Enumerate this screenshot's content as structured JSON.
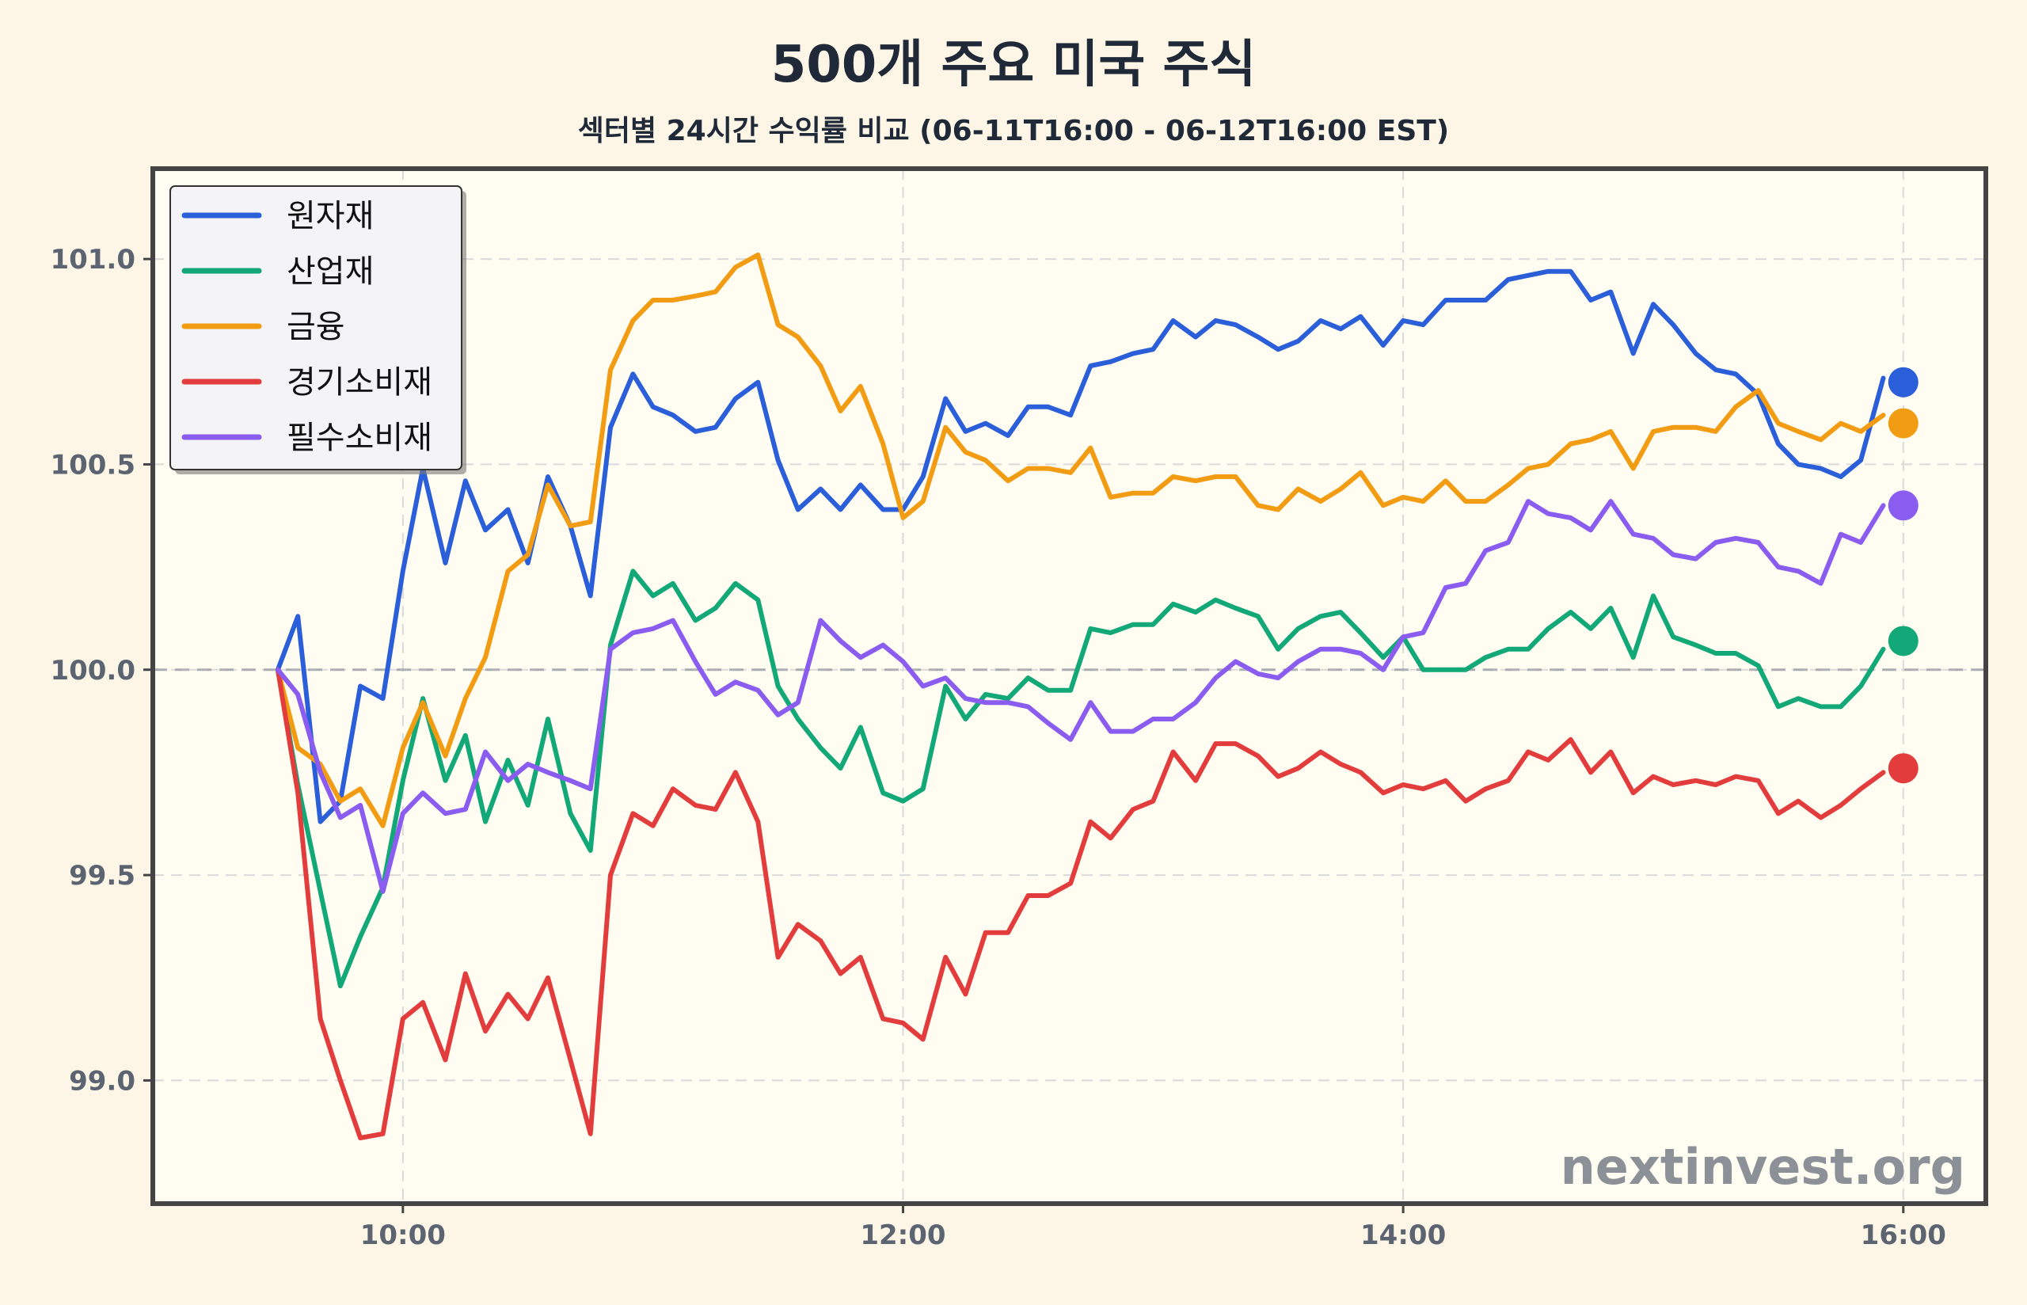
{
  "chart_data": {
    "type": "line",
    "title": "500개 주요 미국 주식",
    "subtitle": "섹터별 24시간 수익률 비교 (06-11T16:00 - 06-12T16:00 EST)",
    "xlabel": "",
    "ylabel": "",
    "x_ticks": [
      "10:00",
      "12:00",
      "14:00",
      "16:00"
    ],
    "y_ticks": [
      "99.0",
      "99.5",
      "100.0",
      "100.5",
      "101.0"
    ],
    "xlim": [
      9.0,
      16.33
    ],
    "ylim": [
      98.7,
      101.22
    ],
    "baseline": 100.0,
    "grid": true,
    "legend_position": "top-left",
    "watermark": "nextinvest.org",
    "x": [
      9.5,
      9.58,
      9.67,
      9.75,
      9.83,
      9.92,
      10.0,
      10.08,
      10.17,
      10.25,
      10.33,
      10.42,
      10.5,
      10.58,
      10.67,
      10.75,
      10.83,
      10.92,
      11.0,
      11.08,
      11.17,
      11.25,
      11.33,
      11.42,
      11.5,
      11.58,
      11.67,
      11.75,
      11.83,
      11.92,
      12.0,
      12.08,
      12.17,
      12.25,
      12.33,
      12.42,
      12.5,
      12.58,
      12.67,
      12.75,
      12.83,
      12.92,
      13.0,
      13.08,
      13.17,
      13.25,
      13.33,
      13.42,
      13.5,
      13.58,
      13.67,
      13.75,
      13.83,
      13.92,
      14.0,
      14.08,
      14.17,
      14.25,
      14.33,
      14.42,
      14.5,
      14.58,
      14.67,
      14.75,
      14.83,
      14.92,
      15.0,
      15.08,
      15.17,
      15.25,
      15.33,
      15.42,
      15.5,
      15.58,
      15.67,
      15.75,
      15.83,
      15.92
    ],
    "series": [
      {
        "name": "원자재",
        "color": "#2b5fd9",
        "values": [
          100.0,
          100.13,
          99.63,
          99.68,
          99.96,
          99.93,
          100.24,
          100.49,
          100.26,
          100.46,
          100.34,
          100.39,
          100.26,
          100.47,
          100.35,
          100.18,
          100.59,
          100.72,
          100.64,
          100.62,
          100.58,
          100.59,
          100.66,
          100.7,
          100.51,
          100.39,
          100.44,
          100.39,
          100.45,
          100.39,
          100.39,
          100.47,
          100.66,
          100.58,
          100.6,
          100.57,
          100.64,
          100.64,
          100.62,
          100.74,
          100.75,
          100.77,
          100.78,
          100.85,
          100.81,
          100.85,
          100.84,
          100.81,
          100.78,
          100.8,
          100.85,
          100.83,
          100.86,
          100.79,
          100.85,
          100.84,
          100.9,
          100.9,
          100.9,
          100.95,
          100.96,
          100.97,
          100.97,
          100.9,
          100.92,
          100.77,
          100.89,
          100.84,
          100.77,
          100.73,
          100.72,
          100.67,
          100.55,
          100.5,
          100.49,
          100.47,
          100.51,
          100.71
        ]
      },
      {
        "name": "산업재",
        "color": "#12a877",
        "values": [
          100.0,
          99.72,
          99.46,
          99.23,
          99.35,
          99.47,
          99.73,
          99.93,
          99.73,
          99.84,
          99.63,
          99.78,
          99.67,
          99.88,
          99.65,
          99.56,
          100.06,
          100.24,
          100.18,
          100.21,
          100.12,
          100.15,
          100.21,
          100.17,
          99.96,
          99.88,
          99.81,
          99.76,
          99.86,
          99.7,
          99.68,
          99.71,
          99.96,
          99.88,
          99.94,
          99.93,
          99.98,
          99.95,
          99.95,
          100.1,
          100.09,
          100.11,
          100.11,
          100.16,
          100.14,
          100.17,
          100.15,
          100.13,
          100.05,
          100.1,
          100.13,
          100.14,
          100.09,
          100.03,
          100.08,
          100.0,
          100.0,
          100.0,
          100.03,
          100.05,
          100.05,
          100.1,
          100.14,
          100.1,
          100.15,
          100.03,
          100.18,
          100.08,
          100.06,
          100.04,
          100.04,
          100.01,
          99.91,
          99.93,
          99.91,
          99.91,
          99.96,
          100.05
        ]
      },
      {
        "name": "금융",
        "color": "#f29c13",
        "values": [
          100.0,
          99.81,
          99.77,
          99.68,
          99.71,
          99.62,
          99.81,
          99.92,
          99.79,
          99.93,
          100.03,
          100.24,
          100.28,
          100.45,
          100.35,
          100.36,
          100.73,
          100.85,
          100.9,
          100.9,
          100.91,
          100.92,
          100.98,
          101.01,
          100.84,
          100.81,
          100.74,
          100.63,
          100.69,
          100.55,
          100.37,
          100.41,
          100.59,
          100.53,
          100.51,
          100.46,
          100.49,
          100.49,
          100.48,
          100.54,
          100.42,
          100.43,
          100.43,
          100.47,
          100.46,
          100.47,
          100.47,
          100.4,
          100.39,
          100.44,
          100.41,
          100.44,
          100.48,
          100.4,
          100.42,
          100.41,
          100.46,
          100.41,
          100.41,
          100.45,
          100.49,
          100.5,
          100.55,
          100.56,
          100.58,
          100.49,
          100.58,
          100.59,
          100.59,
          100.58,
          100.64,
          100.68,
          100.6,
          100.58,
          100.56,
          100.6,
          100.58,
          100.62
        ]
      },
      {
        "name": "경기소비재",
        "color": "#e23c3c",
        "values": [
          100.0,
          99.7,
          99.15,
          99.0,
          98.86,
          98.87,
          99.15,
          99.19,
          99.05,
          99.26,
          99.12,
          99.21,
          99.15,
          99.25,
          99.05,
          98.87,
          99.5,
          99.65,
          99.62,
          99.71,
          99.67,
          99.66,
          99.75,
          99.63,
          99.3,
          99.38,
          99.34,
          99.26,
          99.3,
          99.15,
          99.14,
          99.1,
          99.3,
          99.21,
          99.36,
          99.36,
          99.45,
          99.45,
          99.48,
          99.63,
          99.59,
          99.66,
          99.68,
          99.8,
          99.73,
          99.82,
          99.82,
          99.79,
          99.74,
          99.76,
          99.8,
          99.77,
          99.75,
          99.7,
          99.72,
          99.71,
          99.73,
          99.68,
          99.71,
          99.73,
          99.8,
          99.78,
          99.83,
          99.75,
          99.8,
          99.7,
          99.74,
          99.72,
          99.73,
          99.72,
          99.74,
          99.73,
          99.65,
          99.68,
          99.64,
          99.67,
          99.71,
          99.75
        ]
      },
      {
        "name": "필수소비재",
        "color": "#8b5cf0",
        "values": [
          100.0,
          99.94,
          99.75,
          99.64,
          99.67,
          99.46,
          99.65,
          99.7,
          99.65,
          99.66,
          99.8,
          99.73,
          99.77,
          99.75,
          99.73,
          99.71,
          100.05,
          100.09,
          100.1,
          100.12,
          100.02,
          99.94,
          99.97,
          99.95,
          99.89,
          99.92,
          100.12,
          100.07,
          100.03,
          100.06,
          100.02,
          99.96,
          99.98,
          99.93,
          99.92,
          99.92,
          99.91,
          99.87,
          99.83,
          99.92,
          99.85,
          99.85,
          99.88,
          99.88,
          99.92,
          99.98,
          100.02,
          99.99,
          99.98,
          100.02,
          100.05,
          100.05,
          100.04,
          100.0,
          100.08,
          100.09,
          100.2,
          100.21,
          100.29,
          100.31,
          100.41,
          100.38,
          100.37,
          100.34,
          100.41,
          100.33,
          100.32,
          100.28,
          100.27,
          100.31,
          100.32,
          100.31,
          100.25,
          100.24,
          100.21,
          100.33,
          100.31,
          100.4
        ]
      }
    ],
    "end_markers": [
      {
        "series": "원자재",
        "x": 16.0,
        "y": 100.7
      },
      {
        "series": "금융",
        "x": 16.0,
        "y": 100.6
      },
      {
        "series": "필수소비재",
        "x": 16.0,
        "y": 100.4
      },
      {
        "series": "산업재",
        "x": 16.0,
        "y": 100.07
      },
      {
        "series": "경기소비재",
        "x": 16.0,
        "y": 99.76
      }
    ]
  }
}
